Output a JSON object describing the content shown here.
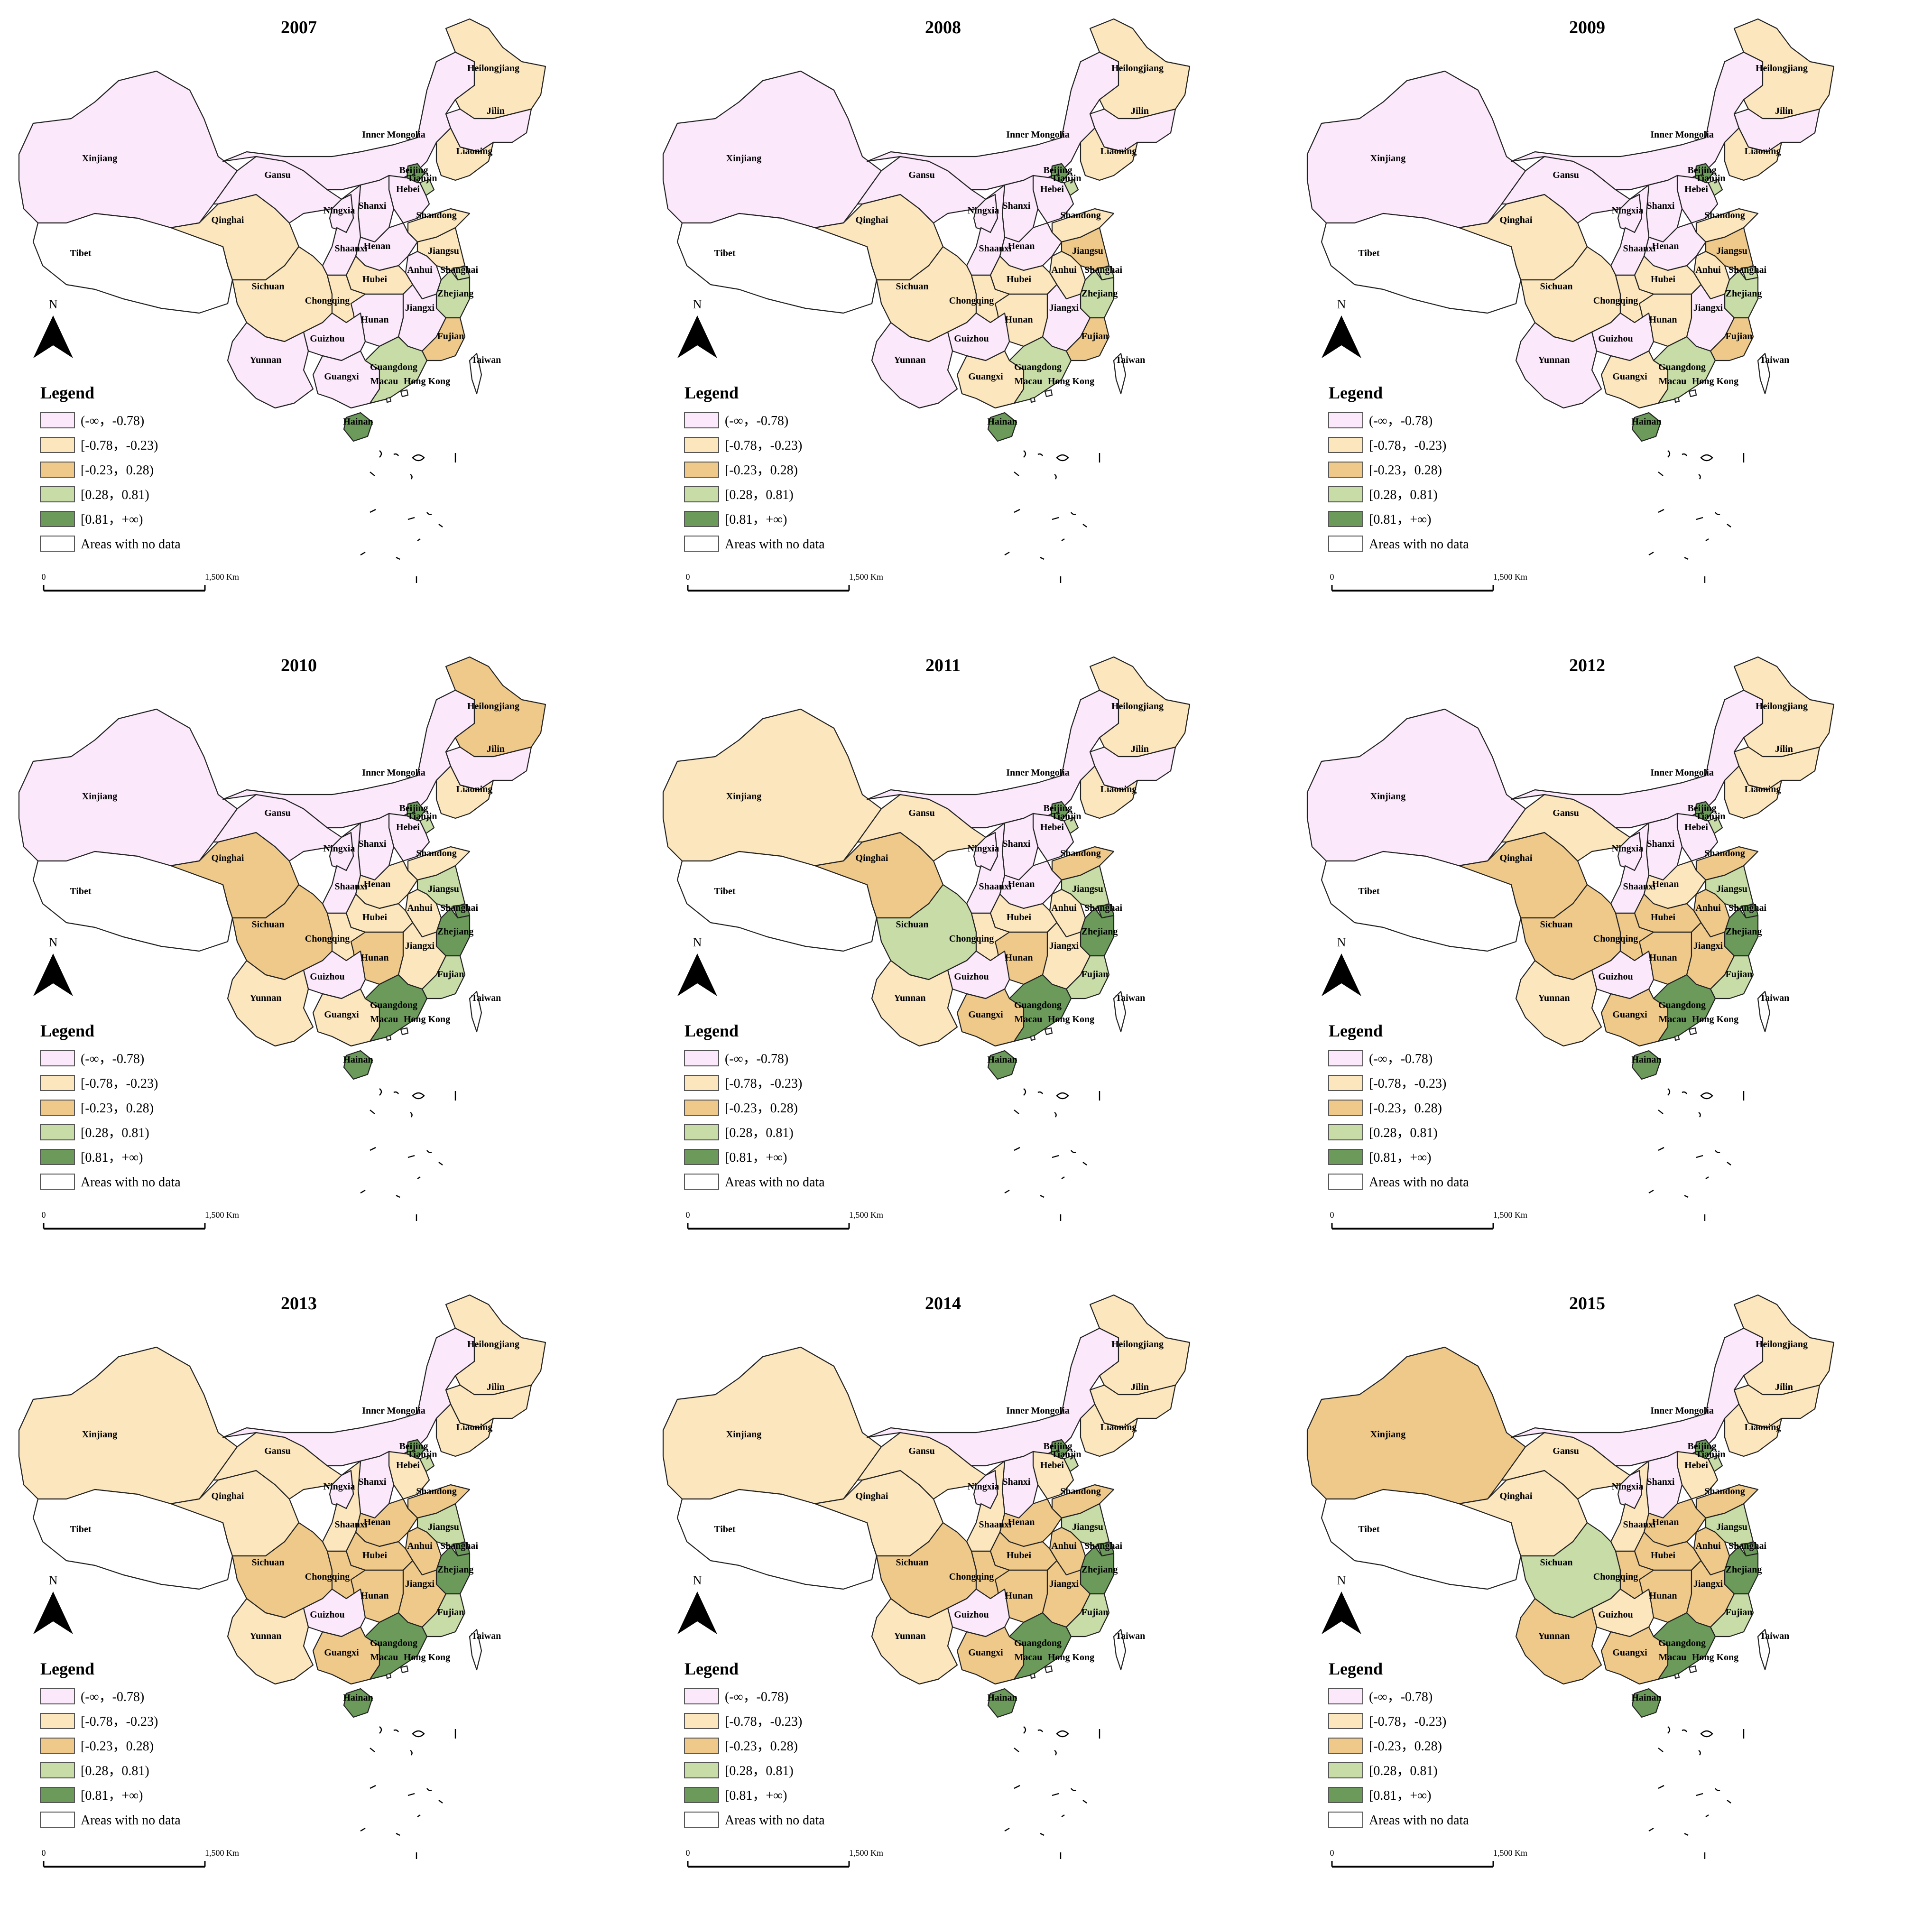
{
  "legend": {
    "title": "Legend",
    "classes": [
      {
        "label": "(-∞，-0.78)",
        "color": "#fbe8fb"
      },
      {
        "label": "[-0.78，-0.23)",
        "color": "#fbe6bd"
      },
      {
        "label": "[-0.23，0.28)",
        "color": "#eec98a"
      },
      {
        "label": "[0.28，0.81)",
        "color": "#c7dca6"
      },
      {
        "label": "[0.81，+∞)",
        "color": "#6b9a5a"
      },
      {
        "label": "Areas with no data",
        "color": "#ffffff"
      }
    ]
  },
  "north_label": "N",
  "scale": {
    "zero": "0",
    "end": "1,500 Km"
  },
  "province_labels": {
    "Xinjiang": "Xinjiang",
    "Tibet": "Tibet",
    "Qinghai": "Qinghai",
    "Gansu": "Gansu",
    "InnerMongolia": "Inner Mongolia",
    "Heilongjiang": "Heilongjiang",
    "Jilin": "Jilin",
    "Liaoning": "Liaoning",
    "Beijing": "Beijing",
    "Tianjin": "Tianjin",
    "Hebei": "Hebei",
    "Shanxi": "Shanxi",
    "Ningxia": "Ningxia",
    "Shaanxi": "Shaanxi",
    "Shandong": "Shandong",
    "Henan": "Henan",
    "Jiangsu": "Jiangsu",
    "Shanghai": "Shanghai",
    "Anhui": "Anhui",
    "Zhejiang": "Zhejiang",
    "Hubei": "Hubei",
    "Sichuan": "Sichuan",
    "Chongqing": "Chongqing",
    "Hunan": "Hunan",
    "Jiangxi": "Jiangxi",
    "Fujian": "Fujian",
    "Guizhou": "Guizhou",
    "Yunnan": "Yunnan",
    "Guangxi": "Guangxi",
    "Guangdong": "Guangdong",
    "Macau": "Macau",
    "HongKong": "Hong Kong",
    "Taiwan": "Taiwan",
    "Hainan": "Hainan"
  },
  "provinces": [
    "Xinjiang",
    "Tibet",
    "Qinghai",
    "Gansu",
    "InnerMongolia",
    "Heilongjiang",
    "Jilin",
    "Liaoning",
    "Beijing",
    "Tianjin",
    "Hebei",
    "Shanxi",
    "Ningxia",
    "Shaanxi",
    "Shandong",
    "Henan",
    "Jiangsu",
    "Shanghai",
    "Anhui",
    "Zhejiang",
    "Hubei",
    "Sichuan",
    "Chongqing",
    "Hunan",
    "Jiangxi",
    "Fujian",
    "Guizhou",
    "Yunnan",
    "Guangxi",
    "Guangdong",
    "Hainan",
    "Taiwan",
    "HongKong",
    "Macau"
  ],
  "panels": [
    {
      "year": "2007",
      "class_index": [
        0,
        -1,
        1,
        0,
        0,
        1,
        0,
        1,
        4,
        3,
        0,
        0,
        0,
        0,
        1,
        0,
        1,
        3,
        0,
        3,
        1,
        1,
        1,
        0,
        0,
        2,
        0,
        0,
        0,
        3,
        4,
        -1,
        -1,
        -1
      ]
    },
    {
      "year": "2008",
      "class_index": [
        0,
        -1,
        1,
        0,
        0,
        1,
        0,
        1,
        4,
        3,
        0,
        0,
        0,
        0,
        1,
        0,
        2,
        3,
        1,
        3,
        1,
        1,
        1,
        1,
        0,
        2,
        0,
        0,
        1,
        3,
        4,
        -1,
        -1,
        -1
      ]
    },
    {
      "year": "2009",
      "class_index": [
        0,
        -1,
        1,
        0,
        0,
        1,
        0,
        1,
        4,
        3,
        0,
        0,
        0,
        0,
        1,
        0,
        2,
        3,
        1,
        3,
        1,
        1,
        1,
        1,
        0,
        2,
        0,
        0,
        1,
        3,
        4,
        -1,
        -1,
        -1
      ]
    },
    {
      "year": "2010",
      "class_index": [
        0,
        -1,
        2,
        0,
        0,
        2,
        0,
        1,
        4,
        3,
        0,
        0,
        0,
        0,
        1,
        1,
        3,
        4,
        1,
        4,
        1,
        2,
        1,
        2,
        1,
        3,
        0,
        1,
        1,
        4,
        4,
        -1,
        -1,
        -1
      ]
    },
    {
      "year": "2011",
      "class_index": [
        1,
        -1,
        2,
        1,
        0,
        1,
        0,
        1,
        4,
        3,
        0,
        0,
        0,
        0,
        2,
        0,
        3,
        4,
        1,
        4,
        1,
        3,
        1,
        2,
        1,
        3,
        0,
        1,
        2,
        4,
        4,
        -1,
        -1,
        -1
      ]
    },
    {
      "year": "2012",
      "class_index": [
        0,
        -1,
        2,
        1,
        0,
        1,
        1,
        1,
        4,
        3,
        0,
        0,
        0,
        0,
        2,
        1,
        3,
        4,
        2,
        4,
        2,
        2,
        2,
        2,
        2,
        3,
        0,
        1,
        2,
        4,
        4,
        -1,
        -1,
        -1
      ]
    },
    {
      "year": "2013",
      "class_index": [
        1,
        -1,
        1,
        1,
        0,
        1,
        1,
        1,
        4,
        3,
        1,
        0,
        0,
        1,
        2,
        2,
        3,
        4,
        2,
        4,
        2,
        2,
        2,
        2,
        2,
        3,
        0,
        1,
        2,
        4,
        4,
        -1,
        -1,
        -1
      ]
    },
    {
      "year": "2014",
      "class_index": [
        1,
        -1,
        1,
        1,
        0,
        1,
        1,
        1,
        4,
        3,
        1,
        0,
        0,
        1,
        2,
        2,
        3,
        4,
        2,
        4,
        2,
        2,
        2,
        2,
        2,
        3,
        0,
        1,
        2,
        4,
        4,
        -1,
        -1,
        -1
      ]
    },
    {
      "year": "2015",
      "class_index": [
        2,
        -1,
        1,
        1,
        0,
        1,
        1,
        1,
        4,
        3,
        1,
        0,
        0,
        1,
        2,
        2,
        3,
        4,
        2,
        4,
        2,
        3,
        2,
        2,
        2,
        3,
        1,
        2,
        2,
        4,
        4,
        -1,
        -1,
        -1
      ]
    }
  ]
}
